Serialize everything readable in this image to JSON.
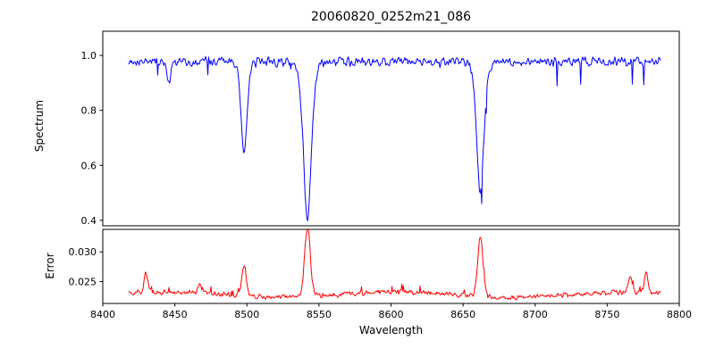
{
  "title": "20060820_0252m21_086",
  "chart_data": {
    "type": "line",
    "title": "20060820_0252m21_086",
    "xlabel": "Wavelength",
    "grid": false,
    "legend": null,
    "xlim": [
      8400,
      8800
    ],
    "x_ticks": [
      8400,
      8450,
      8500,
      8550,
      8600,
      8650,
      8700,
      8750,
      8800
    ],
    "x_tick_labels": [
      "8400",
      "8450",
      "8500",
      "8550",
      "8600",
      "8650",
      "8700",
      "8750",
      "8800"
    ],
    "x_data_range": [
      8418,
      8787
    ],
    "x_points": 700,
    "subplots": [
      {
        "name": "spectrum",
        "ylabel": "Spectrum",
        "ylim": [
          0.38,
          1.088
        ],
        "y_ticks": [
          0.4,
          0.6,
          0.8,
          1.0
        ],
        "y_tick_labels": [
          "0.4",
          "0.6",
          "0.8",
          "1.0"
        ],
        "line_color": "#0000ff",
        "continuum_level": 0.978,
        "noise_amplitude": 0.02,
        "absorption_lines": [
          {
            "center": 8446,
            "depth": 0.09,
            "width": 1.2
          },
          {
            "center": 8498,
            "depth": 0.335,
            "width": 2.2
          },
          {
            "center": 8542,
            "depth": 0.575,
            "width": 2.8
          },
          {
            "center": 8662,
            "depth": 0.475,
            "width": 2.5
          }
        ]
      },
      {
        "name": "error",
        "ylabel": "Error",
        "ylim": [
          0.0213,
          0.0338
        ],
        "y_ticks": [
          0.025,
          0.03
        ],
        "y_tick_labels": [
          "0.025",
          "0.030"
        ],
        "line_color": "#ff0000",
        "baseline_level": 0.0228,
        "noise_amplitude": 0.0005,
        "peaks": [
          {
            "center": 8430,
            "height": 0.0032,
            "width": 1.3
          },
          {
            "center": 8467,
            "height": 0.0015,
            "width": 1.2
          },
          {
            "center": 8498,
            "height": 0.005,
            "width": 1.6
          },
          {
            "center": 8542,
            "height": 0.0115,
            "width": 2.0
          },
          {
            "center": 8662,
            "height": 0.0098,
            "width": 1.8
          },
          {
            "center": 8766,
            "height": 0.003,
            "width": 1.4
          },
          {
            "center": 8777,
            "height": 0.0034,
            "width": 1.2
          }
        ]
      }
    ]
  }
}
